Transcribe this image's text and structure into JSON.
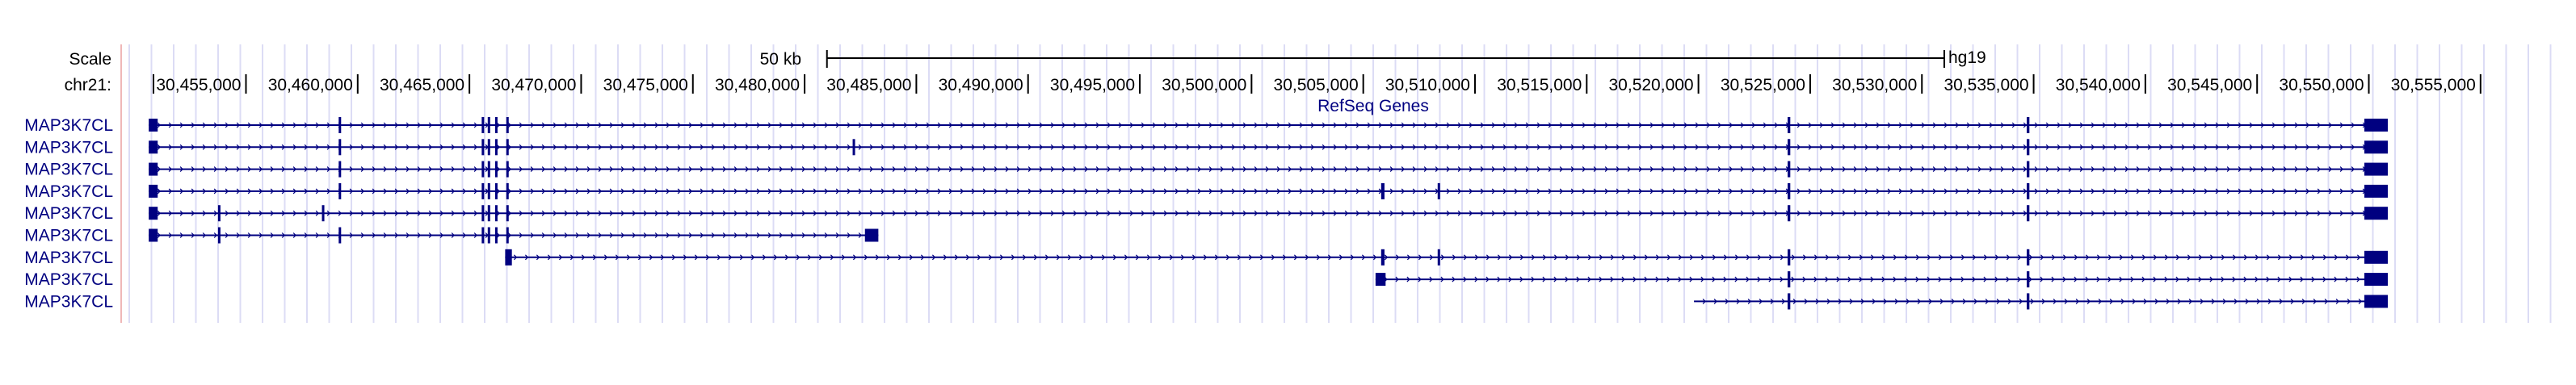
{
  "scale": {
    "label": "Scale",
    "bar_text": "50 kb",
    "assembly": "hg19",
    "bar_kb": 50
  },
  "chromosome": {
    "label": "chr21:",
    "view_start": 30450500,
    "view_end": 30557500,
    "ticks": [
      {
        "pos": 30455000,
        "label": "30,455,000"
      },
      {
        "pos": 30460000,
        "label": "30,460,000"
      },
      {
        "pos": 30465000,
        "label": "30,465,000"
      },
      {
        "pos": 30470000,
        "label": "30,470,000"
      },
      {
        "pos": 30475000,
        "label": "30,475,000"
      },
      {
        "pos": 30480000,
        "label": "30,480,000"
      },
      {
        "pos": 30485000,
        "label": "30,485,000"
      },
      {
        "pos": 30490000,
        "label": "30,490,000"
      },
      {
        "pos": 30495000,
        "label": "30,495,000"
      },
      {
        "pos": 30500000,
        "label": "30,500,000"
      },
      {
        "pos": 30505000,
        "label": "30,505,000"
      },
      {
        "pos": 30510000,
        "label": "30,510,000"
      },
      {
        "pos": 30515000,
        "label": "30,515,000"
      },
      {
        "pos": 30520000,
        "label": "30,520,000"
      },
      {
        "pos": 30525000,
        "label": "30,525,000"
      },
      {
        "pos": 30530000,
        "label": "30,530,000"
      },
      {
        "pos": 30535000,
        "label": "30,535,000"
      },
      {
        "pos": 30540000,
        "label": "30,540,000"
      },
      {
        "pos": 30545000,
        "label": "30,545,000"
      },
      {
        "pos": 30550000,
        "label": "30,550,000"
      },
      {
        "pos": 30555000,
        "label": "30,555,000"
      }
    ]
  },
  "track": {
    "title": "RefSeq Genes",
    "color": "#000080"
  },
  "transcripts": [
    {
      "name": "MAP3K7CL",
      "start": 30450650,
      "end": 30550850,
      "exons": [
        [
          30450650,
          30451050
        ],
        [
          30459150,
          30459250
        ],
        [
          30465550,
          30465620
        ],
        [
          30465820,
          30465890
        ],
        [
          30466150,
          30466230
        ],
        [
          30466650,
          30466730
        ],
        [
          30549800,
          30550850
        ]
      ]
    },
    {
      "name": "MAP3K7CL",
      "start": 30450650,
      "end": 30550850,
      "exons": [
        [
          30450650,
          30451050
        ],
        [
          30459150,
          30459250
        ],
        [
          30465550,
          30465620
        ],
        [
          30465820,
          30465890
        ],
        [
          30466150,
          30466230
        ],
        [
          30466650,
          30466730
        ],
        [
          30482150,
          30482250
        ],
        [
          30549800,
          30550850
        ]
      ]
    },
    {
      "name": "MAP3K7CL",
      "start": 30450650,
      "end": 30550850,
      "exons": [
        [
          30450650,
          30451050
        ],
        [
          30459150,
          30459250
        ],
        [
          30465550,
          30465620
        ],
        [
          30465820,
          30465890
        ],
        [
          30466150,
          30466230
        ],
        [
          30466650,
          30466730
        ],
        [
          30549800,
          30550850
        ]
      ]
    },
    {
      "name": "MAP3K7CL",
      "start": 30450650,
      "end": 30550850,
      "exons": [
        [
          30450650,
          30451050
        ],
        [
          30459150,
          30459250
        ],
        [
          30465550,
          30465620
        ],
        [
          30465820,
          30465890
        ],
        [
          30466150,
          30466230
        ],
        [
          30466650,
          30466730
        ],
        [
          30505800,
          30505950
        ],
        [
          30508330,
          30508420
        ],
        [
          30549800,
          30550850
        ]
      ]
    },
    {
      "name": "MAP3K7CL",
      "start": 30450650,
      "end": 30550850,
      "exons": [
        [
          30450650,
          30451050
        ],
        [
          30453750,
          30453850
        ],
        [
          30458400,
          30458480
        ],
        [
          30465550,
          30465620
        ],
        [
          30465820,
          30465890
        ],
        [
          30466150,
          30466230
        ],
        [
          30466650,
          30466730
        ],
        [
          30549800,
          30550850
        ]
      ]
    },
    {
      "name": "MAP3K7CL",
      "start": 30450650,
      "end": 30483300,
      "exons": [
        [
          30450650,
          30451050
        ],
        [
          30453750,
          30453850
        ],
        [
          30459150,
          30459250
        ],
        [
          30465550,
          30465620
        ],
        [
          30465820,
          30465890
        ],
        [
          30466150,
          30466230
        ],
        [
          30466650,
          30466730
        ],
        [
          30482700,
          30483300
        ]
      ]
    },
    {
      "name": "MAP3K7CL",
      "start": 30466600,
      "end": 30550850,
      "exons": [
        [
          30466600,
          30466900
        ],
        [
          30505800,
          30505950
        ],
        [
          30508330,
          30508420
        ],
        [
          30549800,
          30550850
        ]
      ]
    },
    {
      "name": "MAP3K7CL",
      "start": 30505550,
      "end": 30550850,
      "exons": [
        [
          30505550,
          30506000
        ],
        [
          30549800,
          30550850
        ]
      ]
    },
    {
      "name": "MAP3K7CL",
      "start": 30519800,
      "end": 30550850,
      "exons": [
        [
          30549800,
          30550850
        ]
      ]
    }
  ],
  "shared_exons": [
    30524050,
    30534750
  ],
  "extra_shared": [
    30482150
  ]
}
